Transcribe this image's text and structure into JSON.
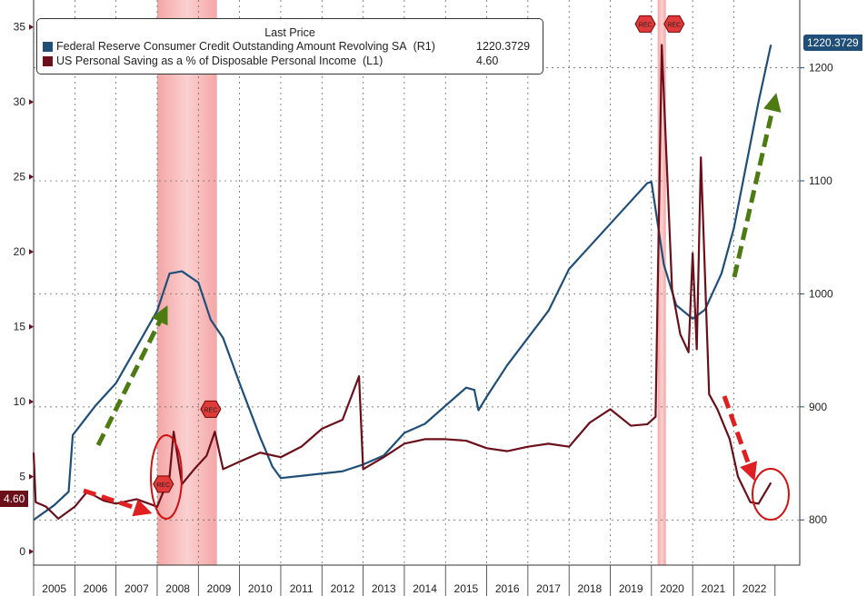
{
  "chart_data": {
    "type": "line",
    "legend_title": "Last Price",
    "legend_placement": "top-left",
    "series": [
      {
        "name": "Federal Reserve Consumer Credit Outstanding Amount Revolving SA",
        "axis_label": "(R1)",
        "last": "1220.3729",
        "color": "#1f4e79",
        "axis": "right",
        "points": [
          [
            2005.0,
            800
          ],
          [
            2005.5,
            813
          ],
          [
            2005.85,
            825
          ],
          [
            2005.95,
            875
          ],
          [
            2006.5,
            901
          ],
          [
            2007.0,
            921
          ],
          [
            2007.5,
            953
          ],
          [
            2008.0,
            985
          ],
          [
            2008.3,
            1018
          ],
          [
            2008.6,
            1020
          ],
          [
            2009.0,
            1010
          ],
          [
            2009.3,
            977
          ],
          [
            2009.6,
            961
          ],
          [
            2010.0,
            921
          ],
          [
            2010.5,
            873
          ],
          [
            2010.8,
            847
          ],
          [
            2011.0,
            837
          ],
          [
            2011.5,
            839
          ],
          [
            2012.0,
            841
          ],
          [
            2012.5,
            843
          ],
          [
            2013.0,
            849
          ],
          [
            2013.5,
            857
          ],
          [
            2014.0,
            877
          ],
          [
            2014.5,
            885
          ],
          [
            2015.0,
            901
          ],
          [
            2015.5,
            917
          ],
          [
            2015.7,
            915
          ],
          [
            2015.8,
            897
          ],
          [
            2016.0,
            909
          ],
          [
            2016.5,
            937
          ],
          [
            2017.0,
            961
          ],
          [
            2017.5,
            985
          ],
          [
            2018.0,
            1022
          ],
          [
            2018.5,
            1042
          ],
          [
            2019.0,
            1062
          ],
          [
            2019.5,
            1082
          ],
          [
            2019.9,
            1098
          ],
          [
            2020.0,
            1099
          ],
          [
            2020.3,
            1026
          ],
          [
            2020.6,
            990
          ],
          [
            2021.0,
            978
          ],
          [
            2021.3,
            986
          ],
          [
            2021.7,
            1018
          ],
          [
            2022.0,
            1058
          ],
          [
            2022.3,
            1114
          ],
          [
            2022.6,
            1170
          ],
          [
            2022.9,
            1220.37
          ]
        ]
      },
      {
        "name": "US Personal Saving as a % of Disposable Personal Income",
        "axis_label": "(L1)",
        "last": "4.60",
        "color": "#6b0f1a",
        "axis": "left",
        "points": [
          [
            2005.0,
            6.6
          ],
          [
            2005.05,
            3.3
          ],
          [
            2005.3,
            3.0
          ],
          [
            2005.6,
            2.2
          ],
          [
            2006.0,
            3.0
          ],
          [
            2006.3,
            4.0
          ],
          [
            2006.7,
            3.4
          ],
          [
            2007.0,
            3.2
          ],
          [
            2007.5,
            3.5
          ],
          [
            2008.0,
            3.0
          ],
          [
            2008.3,
            5.0
          ],
          [
            2008.4,
            8.0
          ],
          [
            2008.6,
            4.5
          ],
          [
            2008.9,
            5.5
          ],
          [
            2009.2,
            6.4
          ],
          [
            2009.4,
            8.0
          ],
          [
            2009.6,
            5.5
          ],
          [
            2010.0,
            6.0
          ],
          [
            2010.5,
            6.6
          ],
          [
            2011.0,
            6.3
          ],
          [
            2011.5,
            7.0
          ],
          [
            2012.0,
            8.2
          ],
          [
            2012.5,
            8.8
          ],
          [
            2012.9,
            11.7
          ],
          [
            2013.0,
            5.5
          ],
          [
            2013.5,
            6.3
          ],
          [
            2014.0,
            7.2
          ],
          [
            2014.5,
            7.5
          ],
          [
            2015.0,
            7.5
          ],
          [
            2015.5,
            7.4
          ],
          [
            2016.0,
            6.9
          ],
          [
            2016.5,
            6.7
          ],
          [
            2017.0,
            7.0
          ],
          [
            2017.5,
            7.2
          ],
          [
            2018.0,
            7.0
          ],
          [
            2018.5,
            8.6
          ],
          [
            2019.0,
            9.5
          ],
          [
            2019.5,
            8.4
          ],
          [
            2019.9,
            8.5
          ],
          [
            2020.1,
            9.0
          ],
          [
            2020.25,
            33.8
          ],
          [
            2020.4,
            24.0
          ],
          [
            2020.5,
            17.5
          ],
          [
            2020.7,
            14.5
          ],
          [
            2020.9,
            13.3
          ],
          [
            2021.0,
            19.9
          ],
          [
            2021.1,
            13.5
          ],
          [
            2021.2,
            26.3
          ],
          [
            2021.4,
            10.5
          ],
          [
            2021.6,
            9.5
          ],
          [
            2021.9,
            7.5
          ],
          [
            2022.1,
            5.0
          ],
          [
            2022.4,
            3.3
          ],
          [
            2022.6,
            3.2
          ],
          [
            2022.9,
            4.6
          ]
        ]
      }
    ],
    "x_ticks": [
      "2005",
      "2006",
      "2007",
      "2008",
      "2009",
      "2010",
      "2011",
      "2012",
      "2013",
      "2014",
      "2015",
      "2016",
      "2017",
      "2018",
      "2019",
      "2020",
      "2021",
      "2022"
    ],
    "xlim": [
      2005,
      2023.6
    ],
    "y_left": {
      "ticks": [
        0,
        5,
        10,
        15,
        20,
        25,
        30,
        35
      ],
      "lim": [
        -0.9,
        36.8
      ]
    },
    "y_right": {
      "ticks": [
        800,
        900,
        1000,
        1100,
        1200
      ],
      "lim": [
        760,
        1260
      ]
    },
    "recessions": [
      [
        2008.0,
        2009.45
      ],
      [
        2020.15,
        2020.35
      ]
    ],
    "rec_label": "REC",
    "grid": true
  }
}
